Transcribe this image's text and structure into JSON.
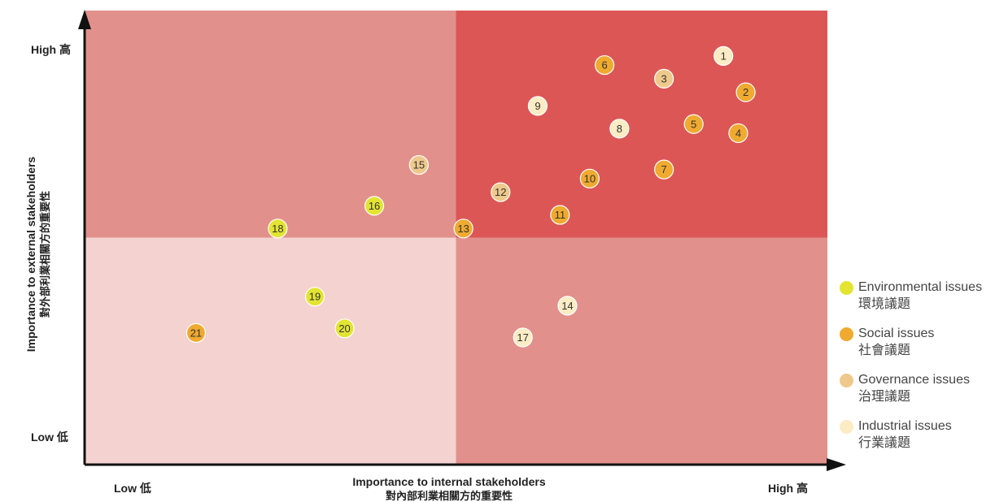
{
  "colors": {
    "quadrant_top_right": "#dc5656",
    "quadrant_top_left": "#e2908c",
    "quadrant_bottom_right": "#e2908c",
    "quadrant_bottom_left": "#f4d2d0",
    "axis": "#111111",
    "point_outline": "#ffffff"
  },
  "chart_data": {
    "type": "scatter",
    "title": "",
    "xlabel": "Importance to internal stakeholders",
    "xlabel_zh": "對內部利業相關方的重要性",
    "ylabel": "Importance to external stakeholders",
    "ylabel_zh": "對外部利業相關方的重要性",
    "x_tick_low": "Low 低",
    "x_tick_high": "High 高",
    "y_tick_low": "Low 低",
    "y_tick_high": "High 高",
    "xlim": [
      0,
      10
    ],
    "ylim": [
      0,
      10
    ],
    "quadrant_split": [
      5,
      5
    ],
    "grid": false,
    "legend_position": "right",
    "categories": [
      {
        "key": "env",
        "label": "Environmental issues",
        "label_zh": "環境議題",
        "color": "#e3e432"
      },
      {
        "key": "soc",
        "label": "Social issues",
        "label_zh": "社會議題",
        "color": "#efaa2f"
      },
      {
        "key": "gov",
        "label": "Governance issues",
        "label_zh": "治理議題",
        "color": "#efc98c"
      },
      {
        "key": "ind",
        "label": "Industrial issues",
        "label_zh": "行業議題",
        "color": "#fcecc4"
      }
    ],
    "points": [
      {
        "id": "1",
        "x": 8.6,
        "y": 9.0,
        "category": "ind"
      },
      {
        "id": "2",
        "x": 8.9,
        "y": 8.2,
        "category": "soc"
      },
      {
        "id": "3",
        "x": 7.8,
        "y": 8.5,
        "category": "gov"
      },
      {
        "id": "4",
        "x": 8.8,
        "y": 7.3,
        "category": "soc"
      },
      {
        "id": "5",
        "x": 8.2,
        "y": 7.5,
        "category": "soc"
      },
      {
        "id": "6",
        "x": 7.0,
        "y": 8.8,
        "category": "soc"
      },
      {
        "id": "7",
        "x": 7.8,
        "y": 6.5,
        "category": "soc"
      },
      {
        "id": "8",
        "x": 7.2,
        "y": 7.4,
        "category": "ind"
      },
      {
        "id": "9",
        "x": 6.1,
        "y": 7.9,
        "category": "ind"
      },
      {
        "id": "10",
        "x": 6.8,
        "y": 6.3,
        "category": "soc"
      },
      {
        "id": "11",
        "x": 6.4,
        "y": 5.5,
        "category": "soc"
      },
      {
        "id": "12",
        "x": 5.6,
        "y": 6.0,
        "category": "gov"
      },
      {
        "id": "13",
        "x": 5.1,
        "y": 5.2,
        "category": "soc"
      },
      {
        "id": "14",
        "x": 6.5,
        "y": 3.5,
        "category": "ind"
      },
      {
        "id": "15",
        "x": 4.5,
        "y": 6.6,
        "category": "gov"
      },
      {
        "id": "16",
        "x": 3.9,
        "y": 5.7,
        "category": "env"
      },
      {
        "id": "17",
        "x": 5.9,
        "y": 2.8,
        "category": "ind"
      },
      {
        "id": "18",
        "x": 2.6,
        "y": 5.2,
        "category": "env"
      },
      {
        "id": "19",
        "x": 3.1,
        "y": 3.7,
        "category": "env"
      },
      {
        "id": "20",
        "x": 3.5,
        "y": 3.0,
        "category": "env"
      },
      {
        "id": "21",
        "x": 1.5,
        "y": 2.9,
        "category": "soc"
      }
    ]
  }
}
